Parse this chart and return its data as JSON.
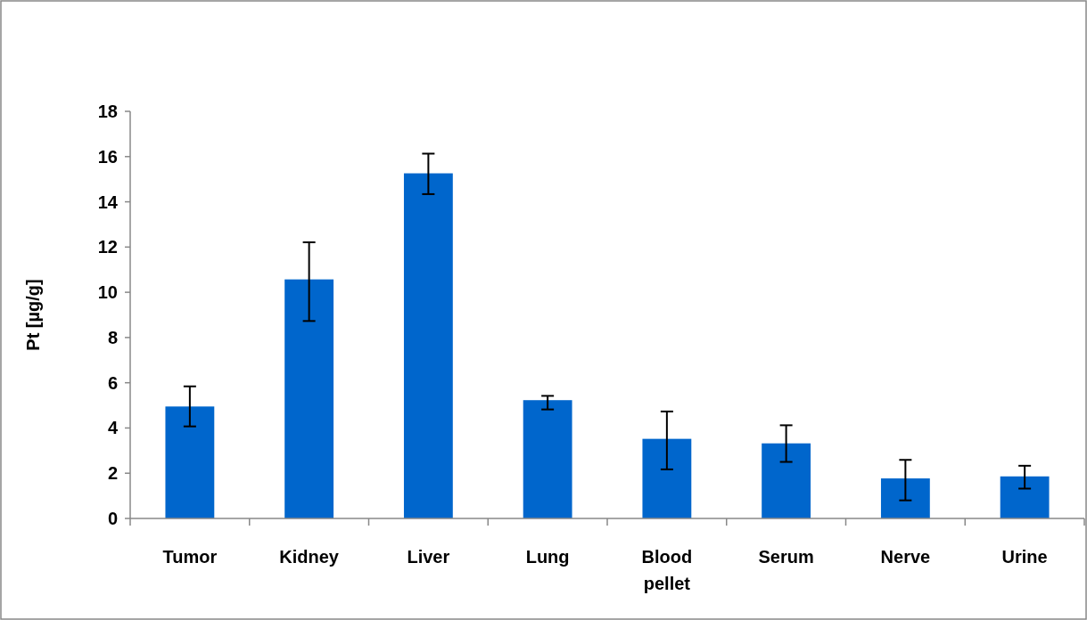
{
  "chart_data": {
    "type": "bar",
    "ylabel": "Pt [µg/g]",
    "categories": [
      "Tumor",
      "Kidney",
      "Liver",
      "Lung",
      "Blood pellet",
      "Serum",
      "Nerve",
      "Urine"
    ],
    "values": [
      4.95,
      10.57,
      15.26,
      5.23,
      3.52,
      3.32,
      1.77,
      1.86
    ],
    "errors": [
      [
        4.07,
        5.84
      ],
      [
        8.73,
        12.21
      ],
      [
        14.34,
        16.13
      ],
      [
        4.82,
        5.42
      ],
      [
        2.17,
        4.73
      ],
      [
        2.5,
        4.12
      ],
      [
        0.8,
        2.59
      ],
      [
        1.32,
        2.33
      ]
    ],
    "color": "#0066cc",
    "ylim": [
      0,
      18
    ],
    "yticks": [
      0,
      2,
      4,
      6,
      8,
      10,
      12,
      14,
      16,
      18
    ],
    "grid": false
  }
}
